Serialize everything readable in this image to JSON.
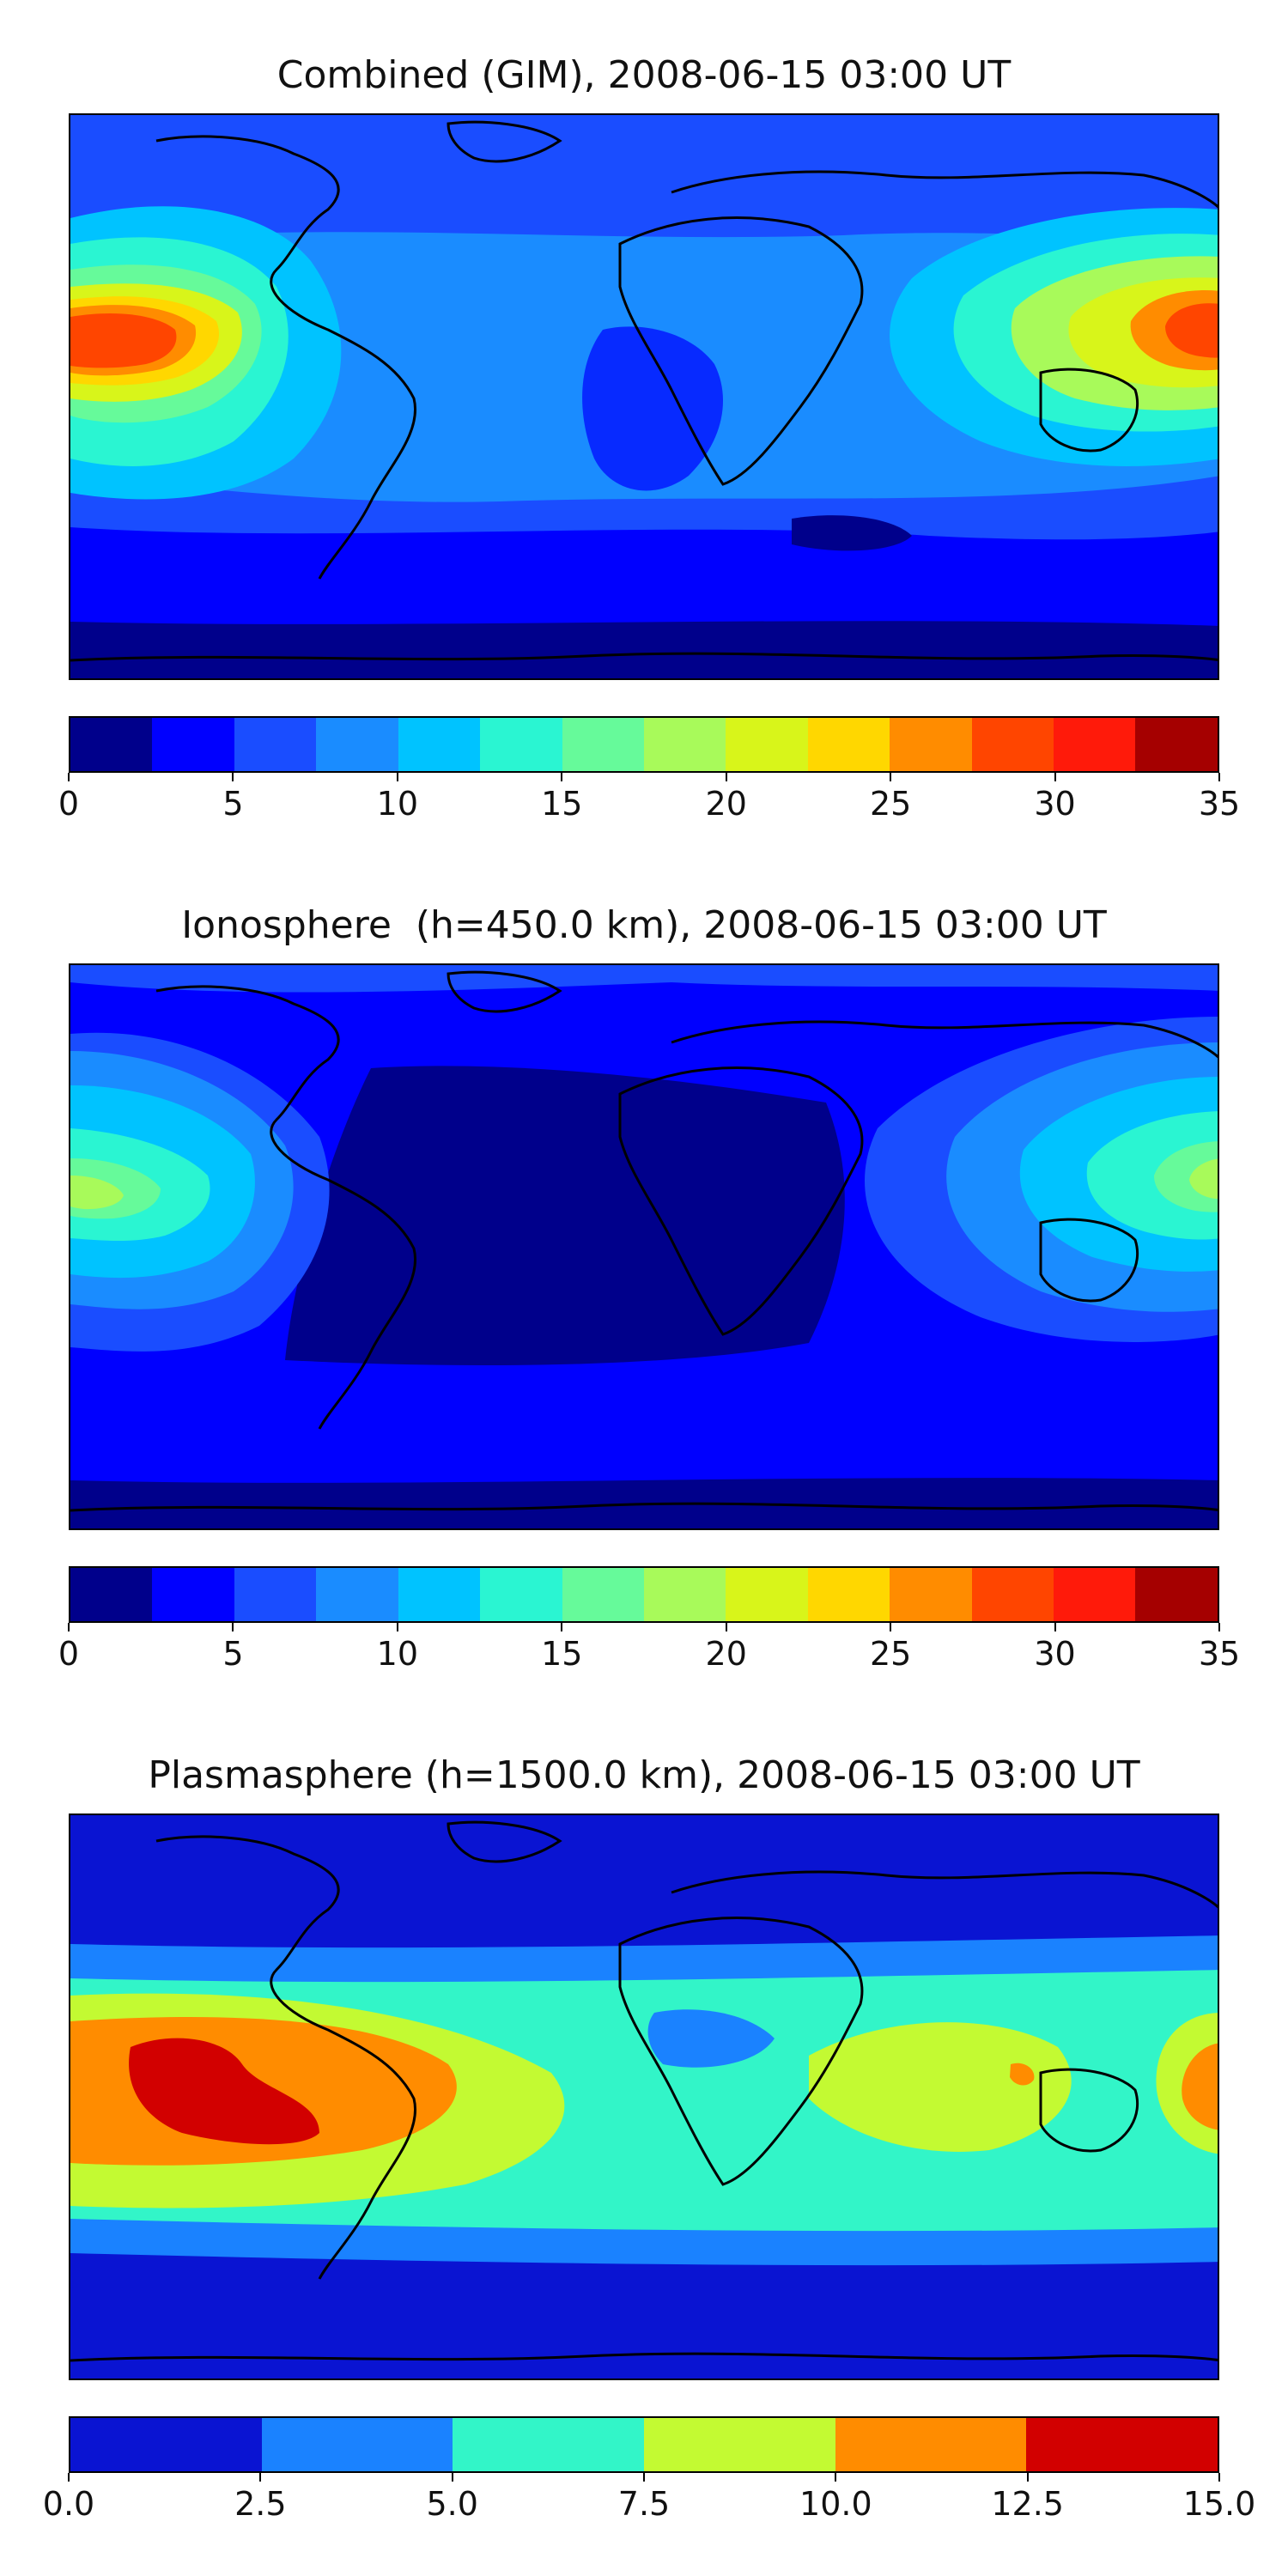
{
  "panels": [
    {
      "title": "Combined (GIM), 2008-06-15 03:00 UT",
      "colorbar": {
        "colors": [
          "#00008b",
          "#0000ff",
          "#1a4dff",
          "#1a8cff",
          "#00c3ff",
          "#2af5d2",
          "#66fa9a",
          "#a8fa5a",
          "#d8f51a",
          "#ffd700",
          "#ff8c00",
          "#ff4500",
          "#ff1a0a",
          "#a50000"
        ],
        "ticks": [
          "0",
          "5",
          "10",
          "15",
          "20",
          "25",
          "30",
          "35"
        ],
        "min": 0,
        "max": 35
      }
    },
    {
      "title": "Ionosphere  (h=450.0 km), 2008-06-15 03:00 UT",
      "colorbar": {
        "colors": [
          "#00008b",
          "#0000ff",
          "#1a4dff",
          "#1a8cff",
          "#00c3ff",
          "#2af5d2",
          "#66fa9a",
          "#a8fa5a",
          "#d8f51a",
          "#ffd700",
          "#ff8c00",
          "#ff4500",
          "#ff1a0a",
          "#a50000"
        ],
        "ticks": [
          "0",
          "5",
          "10",
          "15",
          "20",
          "25",
          "30",
          "35"
        ],
        "min": 0,
        "max": 35
      }
    },
    {
      "title": "Plasmasphere (h=1500.0 km), 2008-06-15 03:00 UT",
      "colorbar": {
        "colors": [
          "#0a14d2",
          "#1a82ff",
          "#32f5c8",
          "#c3fa32",
          "#ff8c00",
          "#d20000"
        ],
        "ticks": [
          "0.0",
          "2.5",
          "5.0",
          "7.5",
          "10.0",
          "12.5",
          "15.0"
        ],
        "min": 0,
        "max": 15
      }
    }
  ]
}
